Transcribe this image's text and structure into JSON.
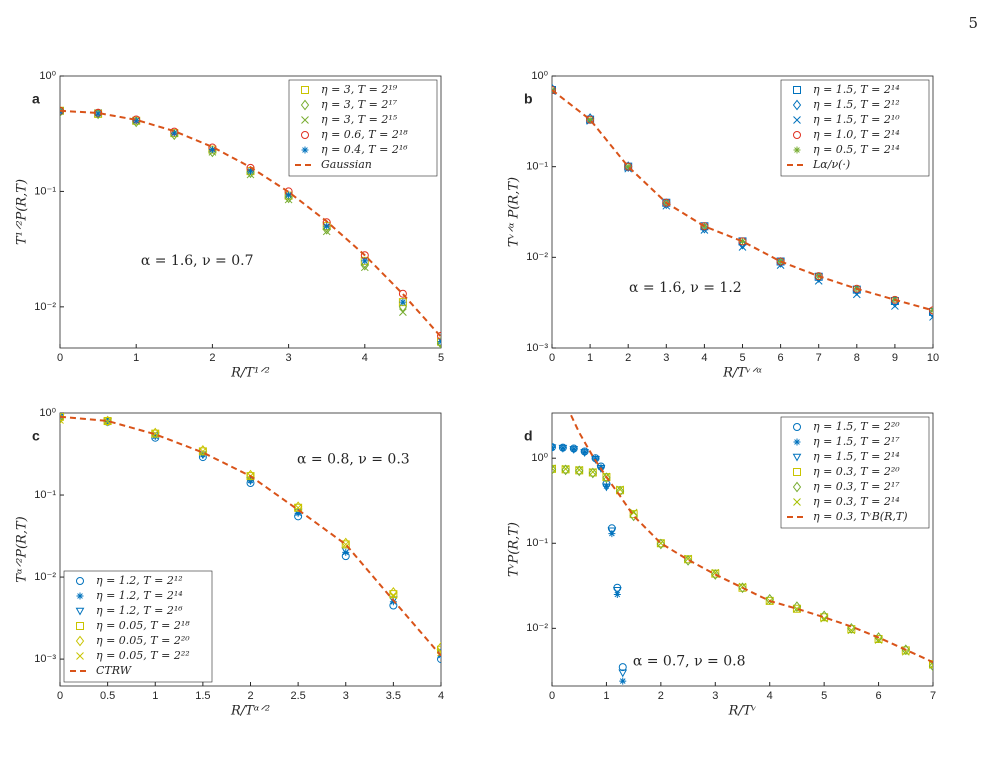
{
  "page_number": "5",
  "chart_data": [
    {
      "type": "scatter",
      "panel_label": "a",
      "annotation": "α = 1.6, ν = 0.7",
      "xlabel": "R/T¹ᐟ²",
      "ylabel": "T¹ᐟ²P(R,T)",
      "log_y": true,
      "legend": "upper right",
      "xlim": [
        0,
        5
      ],
      "ylim": [
        0.0044,
        1
      ],
      "xticks": [
        0,
        1,
        2,
        3,
        4,
        5
      ],
      "yticks": [
        {
          "value": 0.01,
          "label": "10⁻²"
        },
        {
          "value": 0.1,
          "label": "10⁻¹"
        },
        {
          "value": 1,
          "label": "10⁰"
        }
      ],
      "x": [
        0,
        0.5,
        1,
        1.5,
        2,
        2.5,
        3,
        3.5,
        4,
        4.5,
        5
      ],
      "series": [
        {
          "name": "η = 3, T = 2¹⁹",
          "color": "#c9c400",
          "marker": "square",
          "values": [
            0.5,
            0.47,
            0.41,
            0.32,
            0.23,
            0.15,
            0.092,
            0.05,
            0.025,
            0.011,
            0.005
          ]
        },
        {
          "name": "η = 3, T = 2¹⁷",
          "color": "#77ac30",
          "marker": "diamond",
          "values": [
            0.49,
            0.47,
            0.4,
            0.31,
            0.22,
            0.145,
            0.088,
            0.047,
            0.023,
            0.01,
            0.0048
          ]
        },
        {
          "name": "η = 3, T = 2¹⁵",
          "color": "#77ac30",
          "marker": "x",
          "values": [
            0.5,
            0.48,
            0.41,
            0.32,
            0.22,
            0.14,
            0.085,
            0.045,
            0.022,
            0.009,
            0.0045
          ]
        },
        {
          "name": "η = 0.6, T = 2¹⁸",
          "color": "#e03020",
          "marker": "circle",
          "values": [
            0.5,
            0.48,
            0.42,
            0.33,
            0.24,
            0.16,
            0.1,
            0.054,
            0.028,
            0.013,
            0.0056
          ]
        },
        {
          "name": "η = 0.4, T = 2¹⁶",
          "color": "#0072bd",
          "marker": "asterisk",
          "values": [
            0.49,
            0.47,
            0.41,
            0.32,
            0.23,
            0.15,
            0.093,
            0.05,
            0.025,
            0.011,
            0.005
          ]
        },
        {
          "name": "Gaussian",
          "color": "#d95319",
          "line": "dashed",
          "values": [
            0.5,
            0.478,
            0.417,
            0.333,
            0.243,
            0.162,
            0.099,
            0.055,
            0.028,
            0.0129,
            0.0055
          ]
        }
      ]
    },
    {
      "type": "scatter",
      "panel_label": "b",
      "annotation": "α = 1.6, ν = 1.2",
      "xlabel": "R/Tᵛᐟᵅ",
      "ylabel": "Tᵛᐟᵅ P(R,T)",
      "log_y": true,
      "legend": "upper right",
      "xlim": [
        0,
        10
      ],
      "ylim": [
        0.001,
        1
      ],
      "xticks": [
        0,
        1,
        2,
        3,
        4,
        5,
        6,
        7,
        8,
        9,
        10
      ],
      "yticks": [
        {
          "value": 0.001,
          "label": "10⁻³"
        },
        {
          "value": 0.01,
          "label": "10⁻²"
        },
        {
          "value": 0.1,
          "label": "10⁻¹"
        },
        {
          "value": 1,
          "label": "10⁰"
        }
      ],
      "x": [
        0,
        1,
        2,
        3,
        4,
        5,
        6,
        7,
        8,
        9,
        10
      ],
      "series": [
        {
          "name": "η = 1.5, T = 2¹⁴",
          "color": "#0072bd",
          "marker": "square",
          "values": [
            0.7,
            0.33,
            0.1,
            0.04,
            0.022,
            0.015,
            0.009,
            0.0061,
            0.0044,
            0.0033,
            0.0025
          ]
        },
        {
          "name": "η = 1.5, T = 2¹²",
          "color": "#0072bd",
          "marker": "diamond",
          "values": [
            0.72,
            0.34,
            0.1,
            0.039,
            0.021,
            0.014,
            0.0088,
            0.006,
            0.0043,
            0.0032,
            0.0024
          ]
        },
        {
          "name": "η = 1.5, T = 2¹⁰",
          "color": "#0072bd",
          "marker": "x",
          "values": [
            0.68,
            0.32,
            0.095,
            0.037,
            0.02,
            0.013,
            0.0082,
            0.0055,
            0.0039,
            0.0029,
            0.0022
          ]
        },
        {
          "name": "η = 1.0, T = 2¹⁴",
          "color": "#e03020",
          "marker": "circle",
          "values": [
            0.7,
            0.33,
            0.1,
            0.04,
            0.022,
            0.015,
            0.009,
            0.0062,
            0.0045,
            0.0034,
            0.0026
          ]
        },
        {
          "name": "η = 0.5, T = 2¹⁴",
          "color": "#77ac30",
          "marker": "asterisk",
          "values": [
            0.7,
            0.33,
            0.1,
            0.04,
            0.022,
            0.015,
            0.009,
            0.0062,
            0.0045,
            0.0034,
            0.0026
          ]
        },
        {
          "name": "Lα/ν(·)",
          "color": "#d95319",
          "line": "dashed",
          "values": [
            0.7,
            0.33,
            0.1,
            0.04,
            0.022,
            0.015,
            0.009,
            0.0062,
            0.0045,
            0.0034,
            0.0026
          ]
        }
      ]
    },
    {
      "type": "scatter",
      "panel_label": "c",
      "annotation": "α = 0.8, ν = 0.3",
      "xlabel": "R/Tᵅᐟ²",
      "ylabel": "Tᵅᐟ²P(R,T)",
      "log_y": true,
      "legend": "lower left",
      "xlim": [
        0,
        4
      ],
      "ylim": [
        0.00047,
        1
      ],
      "xticks": [
        0,
        0.5,
        1,
        1.5,
        2,
        2.5,
        3,
        3.5,
        4
      ],
      "yticks": [
        {
          "value": 0.001,
          "label": "10⁻³"
        },
        {
          "value": 0.01,
          "label": "10⁻²"
        },
        {
          "value": 0.1,
          "label": "10⁻¹"
        },
        {
          "value": 1,
          "label": "10⁰"
        }
      ],
      "x": [
        0,
        0.5,
        1,
        1.5,
        2,
        2.5,
        3,
        3.5,
        4
      ],
      "series": [
        {
          "name": "η = 1.2, T = 2¹²",
          "color": "#0072bd",
          "marker": "circle",
          "values": [
            0.9,
            0.78,
            0.5,
            0.29,
            0.14,
            0.055,
            0.018,
            0.0045,
            0.001
          ]
        },
        {
          "name": "η = 1.2, T = 2¹⁴",
          "color": "#0072bd",
          "marker": "asterisk",
          "values": [
            0.9,
            0.79,
            0.52,
            0.31,
            0.15,
            0.06,
            0.02,
            0.005,
            0.0011
          ]
        },
        {
          "name": "η = 1.2, T = 2¹⁶",
          "color": "#0072bd",
          "marker": "triangle",
          "values": [
            0.88,
            0.78,
            0.53,
            0.31,
            0.15,
            0.062,
            0.021,
            0.0053,
            0.0012
          ]
        },
        {
          "name": "η = 0.05, T = 2¹⁸",
          "color": "#c9c400",
          "marker": "square",
          "values": [
            0.9,
            0.8,
            0.56,
            0.34,
            0.17,
            0.07,
            0.025,
            0.0062,
            0.0013
          ]
        },
        {
          "name": "η = 0.05, T = 2²⁰",
          "color": "#c9c400",
          "marker": "diamond",
          "values": [
            0.85,
            0.8,
            0.57,
            0.35,
            0.175,
            0.072,
            0.026,
            0.0065,
            0.0014
          ]
        },
        {
          "name": "η = 0.05, T = 2²²",
          "color": "#c9c400",
          "marker": "x",
          "values": [
            0.82,
            0.79,
            0.56,
            0.34,
            0.17,
            0.07,
            0.025,
            0.006,
            0.0012
          ]
        },
        {
          "name": "CTRW",
          "color": "#d95319",
          "line": "dashed",
          "values": [
            0.9,
            0.8,
            0.55,
            0.33,
            0.17,
            0.066,
            0.025,
            0.0052,
            0.0011
          ]
        }
      ]
    },
    {
      "type": "scatter",
      "panel_label": "d",
      "annotation": "α = 0.7, ν = 0.8",
      "xlabel": "R/Tᵛ",
      "ylabel": "TᵛP(R,T)",
      "log_y": true,
      "legend": "upper right",
      "xlim": [
        0,
        7
      ],
      "ylim": [
        0.0021,
        3.4
      ],
      "xticks": [
        0,
        1,
        2,
        3,
        4,
        5,
        6,
        7
      ],
      "yticks": [
        {
          "value": 0.01,
          "label": "10⁻²"
        },
        {
          "value": 0.1,
          "label": "10⁻¹"
        },
        {
          "value": 1,
          "label": "10⁰"
        }
      ],
      "series": [
        {
          "name": "η = 1.5, T = 2²⁰",
          "color": "#0072bd",
          "marker": "circle",
          "x": [
            0,
            0.2,
            0.4,
            0.6,
            0.8,
            0.9,
            1.0,
            1.1,
            1.2,
            1.3
          ],
          "values": [
            1.35,
            1.33,
            1.3,
            1.2,
            1.0,
            0.8,
            0.5,
            0.15,
            0.03,
            0.0035
          ]
        },
        {
          "name": "η = 1.5, T = 2¹⁷",
          "color": "#0072bd",
          "marker": "asterisk",
          "x": [
            0,
            0.2,
            0.4,
            0.6,
            0.8,
            0.9,
            1.0,
            1.1,
            1.2,
            1.3
          ],
          "values": [
            1.34,
            1.32,
            1.28,
            1.18,
            0.98,
            0.78,
            0.47,
            0.13,
            0.025,
            0.0024
          ]
        },
        {
          "name": "η = 1.5, T = 2¹⁴",
          "color": "#0072bd",
          "marker": "triangle",
          "x": [
            0,
            0.2,
            0.4,
            0.6,
            0.8,
            0.9,
            1.0,
            1.1,
            1.2,
            1.3
          ],
          "values": [
            1.33,
            1.31,
            1.27,
            1.17,
            0.97,
            0.76,
            0.46,
            0.14,
            0.028,
            0.003
          ]
        },
        {
          "name": "η = 0.3, T = 2²⁰",
          "color": "#c9c400",
          "marker": "square",
          "x": [
            0,
            0.25,
            0.5,
            0.75,
            1,
            1.25,
            1.5,
            2,
            2.5,
            3,
            3.5,
            4,
            4.5,
            5,
            5.5,
            6,
            6.5,
            7
          ],
          "values": [
            0.75,
            0.74,
            0.72,
            0.68,
            0.6,
            0.42,
            0.22,
            0.1,
            0.065,
            0.044,
            0.03,
            0.021,
            0.017,
            0.0135,
            0.0098,
            0.0075,
            0.0055,
            0.0038
          ]
        },
        {
          "name": "η = 0.3, T = 2¹⁷",
          "color": "#77ac30",
          "marker": "diamond",
          "x": [
            0,
            0.25,
            0.5,
            0.75,
            1,
            1.25,
            1.5,
            2,
            2.5,
            3,
            3.5,
            4,
            4.5,
            5,
            5.5,
            6,
            6.5,
            7
          ],
          "values": [
            0.74,
            0.73,
            0.71,
            0.67,
            0.59,
            0.41,
            0.21,
            0.098,
            0.063,
            0.043,
            0.03,
            0.022,
            0.018,
            0.014,
            0.01,
            0.0078,
            0.0056,
            0.0036
          ]
        },
        {
          "name": "η = 0.3, T = 2¹⁴",
          "color": "#a5c000",
          "marker": "x",
          "x": [
            0,
            0.25,
            0.5,
            0.75,
            1,
            1.25,
            1.5,
            2,
            2.5,
            3,
            3.5,
            4,
            4.5,
            5,
            5.5,
            6,
            6.5,
            7
          ],
          "values": [
            0.76,
            0.75,
            0.73,
            0.69,
            0.61,
            0.43,
            0.23,
            0.1,
            0.066,
            0.045,
            0.031,
            0.021,
            0.017,
            0.013,
            0.0095,
            0.0073,
            0.0053,
            0.0037
          ]
        },
        {
          "name": "η = 0.3, TᵛB(R,T)",
          "color": "#d95319",
          "line": "dashed",
          "x": [
            0.35,
            0.5,
            0.75,
            1,
            1.25,
            1.5,
            2,
            2.5,
            3,
            3.5,
            4,
            4.5,
            5,
            5.5,
            6,
            6.5,
            7
          ],
          "values": [
            3.2,
            2.0,
            1.05,
            0.6,
            0.36,
            0.21,
            0.1,
            0.064,
            0.043,
            0.03,
            0.021,
            0.017,
            0.0135,
            0.0105,
            0.0078,
            0.0056,
            0.004
          ]
        }
      ]
    }
  ]
}
